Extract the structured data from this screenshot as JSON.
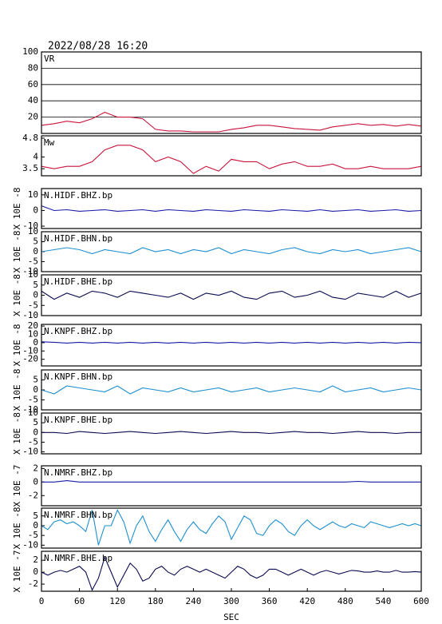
{
  "title": "2022/08/28 16:20",
  "chart_data": [
    {
      "type": "line",
      "label": "VR",
      "x": [
        0,
        20,
        40,
        60,
        80,
        100,
        120,
        140,
        160,
        180,
        200,
        220,
        240,
        260,
        280,
        300,
        320,
        340,
        360,
        380,
        400,
        420,
        440,
        460,
        480,
        500,
        520,
        540,
        560,
        580,
        600
      ],
      "values": [
        10,
        12,
        15,
        13,
        18,
        26,
        20,
        20,
        18,
        5,
        3,
        3,
        2,
        2,
        2,
        5,
        7,
        10,
        10,
        8,
        6,
        5,
        4,
        8,
        10,
        12,
        10,
        11,
        9,
        11,
        9
      ],
      "color": "#c8143c",
      "xlim": [
        0,
        600
      ],
      "ylim": [
        0,
        100
      ],
      "yticks": [
        20,
        40,
        60,
        80,
        100
      ],
      "grid": true
    },
    {
      "type": "line",
      "label": "Mw",
      "x": [
        0,
        20,
        40,
        60,
        80,
        100,
        120,
        140,
        160,
        180,
        200,
        220,
        240,
        260,
        280,
        300,
        320,
        340,
        360,
        380,
        400,
        420,
        440,
        460,
        480,
        500,
        520,
        540,
        560,
        580,
        600
      ],
      "values": [
        3.6,
        3.5,
        3.6,
        3.6,
        3.8,
        4.3,
        4.5,
        4.5,
        4.3,
        3.8,
        4.0,
        3.8,
        3.3,
        3.6,
        3.4,
        3.9,
        3.8,
        3.8,
        3.5,
        3.7,
        3.8,
        3.6,
        3.6,
        3.7,
        3.5,
        3.5,
        3.6,
        3.5,
        3.5,
        3.5,
        3.6
      ],
      "color": "#c8143c",
      "xlim": [
        0,
        600
      ],
      "ylim": [
        3.2,
        4.9
      ],
      "yticks": [
        3.5,
        4.0,
        4.8
      ],
      "grid": false
    },
    {
      "type": "line",
      "label": "N.HIDF.BHZ.bp",
      "ylabel": "X 10E -8",
      "x": [
        0,
        20,
        40,
        60,
        80,
        100,
        120,
        140,
        160,
        180,
        200,
        220,
        240,
        260,
        280,
        300,
        320,
        340,
        360,
        380,
        400,
        420,
        440,
        460,
        480,
        500,
        520,
        540,
        560,
        580,
        600
      ],
      "values": [
        3,
        0,
        0.5,
        -0.5,
        0,
        0.5,
        -0.5,
        0,
        0.5,
        -0.5,
        0.5,
        0,
        -0.5,
        0.5,
        0,
        -0.5,
        0.5,
        0,
        -0.5,
        0.5,
        0,
        -0.5,
        0.5,
        -0.5,
        0,
        0.5,
        -0.5,
        0,
        0.5,
        -0.5,
        0
      ],
      "color": "#1a1aa8",
      "xlim": [
        0,
        600
      ],
      "ylim": [
        -11.5,
        14
      ],
      "yticks": [
        -10,
        0,
        10
      ],
      "grid": false
    },
    {
      "type": "line",
      "label": "N.HIDF.BHN.bp",
      "ylabel": "X 10E -8",
      "x": [
        0,
        20,
        40,
        60,
        80,
        100,
        120,
        140,
        160,
        180,
        200,
        220,
        240,
        260,
        280,
        300,
        320,
        340,
        360,
        380,
        400,
        420,
        440,
        460,
        480,
        500,
        520,
        540,
        560,
        580,
        600
      ],
      "values": [
        0,
        1,
        2,
        1,
        -1,
        1,
        0,
        -1,
        2,
        0,
        1,
        -1,
        1,
        0,
        2,
        -1,
        1,
        0,
        -1,
        1,
        2,
        0,
        -1,
        1,
        0,
        1,
        -1,
        0,
        1,
        2,
        0
      ],
      "color": "#1f8fd0",
      "xlim": [
        0,
        600
      ],
      "ylim": [
        -10,
        10
      ],
      "yticks": [
        -10,
        -5,
        0,
        5,
        10
      ],
      "grid": false
    },
    {
      "type": "line",
      "label": "N.HIDF.BHE.bp",
      "ylabel": "X 10E -8",
      "x": [
        0,
        20,
        40,
        60,
        80,
        100,
        120,
        140,
        160,
        180,
        200,
        220,
        240,
        260,
        280,
        300,
        320,
        340,
        360,
        380,
        400,
        420,
        440,
        460,
        480,
        500,
        520,
        540,
        560,
        580,
        600
      ],
      "values": [
        2,
        -2,
        1,
        -1,
        2,
        1,
        -1,
        2,
        1,
        0,
        -1,
        1,
        -2,
        1,
        0,
        2,
        -1,
        -2,
        1,
        2,
        -1,
        0,
        2,
        -1,
        -2,
        1,
        0,
        -1,
        2,
        -1,
        1
      ],
      "color": "#0a0a50",
      "xlim": [
        0,
        600
      ],
      "ylim": [
        -10,
        10
      ],
      "yticks": [
        -10,
        -5,
        0,
        5,
        10
      ],
      "grid": false
    },
    {
      "type": "line",
      "label": "N.KNPF.BHZ.bp",
      "ylabel": "X 10E -8",
      "x": [
        0,
        20,
        40,
        60,
        80,
        100,
        120,
        140,
        160,
        180,
        200,
        220,
        240,
        260,
        280,
        300,
        320,
        340,
        360,
        380,
        400,
        420,
        440,
        460,
        480,
        500,
        520,
        540,
        560,
        580,
        600
      ],
      "values": [
        1,
        0.5,
        -0.5,
        0.5,
        -0.5,
        0.5,
        -0.5,
        0.5,
        -0.5,
        0.5,
        -0.5,
        0.5,
        -0.5,
        0.5,
        -0.5,
        0.5,
        -0.5,
        0.5,
        -0.5,
        0.5,
        -0.5,
        0.5,
        -0.5,
        0.5,
        -0.5,
        0.5,
        -0.5,
        0.5,
        -0.5,
        0.5,
        0
      ],
      "color": "#1a1aa8",
      "xlim": [
        0,
        600
      ],
      "ylim": [
        -28,
        22
      ],
      "yticks": [
        -20,
        -10,
        0,
        10,
        20
      ],
      "grid": false
    },
    {
      "type": "line",
      "label": "N.KNPF.BHN.bp",
      "ylabel": "X 10E -8",
      "x": [
        0,
        20,
        40,
        60,
        80,
        100,
        120,
        140,
        160,
        180,
        200,
        220,
        240,
        260,
        280,
        300,
        320,
        340,
        360,
        380,
        400,
        420,
        440,
        460,
        480,
        500,
        520,
        540,
        560,
        580,
        600
      ],
      "values": [
        0,
        -2,
        2,
        1,
        0,
        -1,
        2,
        -2,
        1,
        0,
        -1,
        1,
        -1,
        0,
        1,
        -1,
        0,
        1,
        -1,
        0,
        1,
        0,
        -1,
        2,
        -1,
        0,
        1,
        -1,
        0,
        1,
        0
      ],
      "color": "#1f8fd0",
      "xlim": [
        0,
        600
      ],
      "ylim": [
        -10,
        10
      ],
      "yticks": [
        -10,
        -5,
        0,
        5
      ],
      "grid": false
    },
    {
      "type": "line",
      "label": "N.KNPF.BHE.bp",
      "ylabel": "X 10E -8",
      "x": [
        0,
        20,
        40,
        60,
        80,
        100,
        120,
        140,
        160,
        180,
        200,
        220,
        240,
        260,
        280,
        300,
        320,
        340,
        360,
        380,
        400,
        420,
        440,
        460,
        480,
        500,
        520,
        540,
        560,
        580,
        600
      ],
      "values": [
        0,
        0,
        -0.5,
        0.5,
        0,
        -0.5,
        0,
        0.5,
        0,
        -0.5,
        0,
        0.5,
        0,
        -0.5,
        0,
        0.5,
        0,
        0,
        -0.5,
        0,
        0.5,
        0,
        0,
        -0.5,
        0,
        0.5,
        0,
        0,
        -0.5,
        0,
        0
      ],
      "color": "#0a0a50",
      "xlim": [
        0,
        600
      ],
      "ylim": [
        -11,
        10
      ],
      "yticks": [
        -10,
        -5,
        0,
        5,
        10
      ],
      "grid": false
    },
    {
      "type": "line",
      "label": "N.NMRF.BHZ.bp",
      "ylabel": "X 10E -7",
      "x": [
        0,
        20,
        40,
        60,
        80,
        100,
        120,
        140,
        160,
        180,
        200,
        220,
        240,
        260,
        280,
        300,
        320,
        340,
        360,
        380,
        400,
        420,
        440,
        460,
        480,
        500,
        520,
        540,
        560,
        580,
        600
      ],
      "values": [
        0,
        0,
        0.2,
        0,
        0,
        0,
        0,
        0,
        0,
        0,
        0,
        0,
        0,
        0,
        0,
        0,
        0,
        0,
        0,
        0,
        0,
        0,
        0,
        0,
        0,
        0.1,
        0,
        0,
        0,
        0,
        0
      ],
      "color": "#1a1aa8",
      "xlim": [
        0,
        600
      ],
      "ylim": [
        -3.5,
        2.4
      ],
      "yticks": [
        -2,
        0,
        2
      ],
      "grid": false
    },
    {
      "type": "line",
      "label": "N.NMRF.BHN.bp",
      "ylabel": "X 10E -8",
      "x": [
        0,
        10,
        20,
        30,
        40,
        50,
        60,
        70,
        80,
        90,
        100,
        110,
        120,
        130,
        140,
        150,
        160,
        170,
        180,
        190,
        200,
        210,
        220,
        230,
        240,
        250,
        260,
        270,
        280,
        290,
        300,
        310,
        320,
        330,
        340,
        350,
        360,
        370,
        380,
        390,
        400,
        410,
        420,
        430,
        440,
        450,
        460,
        470,
        480,
        490,
        500,
        510,
        520,
        530,
        540,
        550,
        560,
        570,
        580,
        590,
        600
      ],
      "values": [
        0,
        -2,
        2,
        3,
        1,
        2,
        0,
        -3,
        8,
        -10,
        0,
        0,
        8,
        2,
        -9,
        0,
        5,
        -3,
        -8,
        -2,
        3,
        -3,
        -8,
        -2,
        2,
        -2,
        -4,
        1,
        5,
        2,
        -7,
        -1,
        5,
        3,
        -4,
        -5,
        0,
        3,
        1,
        -3,
        -5,
        0,
        3,
        0,
        -2,
        0,
        2,
        0,
        -1,
        1,
        0,
        -1,
        2,
        1,
        0,
        -1,
        0,
        1,
        0,
        1,
        0
      ],
      "color": "#1f8fd0",
      "xlim": [
        0,
        600
      ],
      "ylim": [
        -11.5,
        9
      ],
      "yticks": [
        -10,
        -5,
        0,
        5
      ],
      "grid": false
    },
    {
      "type": "line",
      "label": "N.NMRF.BHE.bp",
      "ylabel": "X 10E -7",
      "x": [
        0,
        10,
        20,
        30,
        40,
        50,
        60,
        70,
        80,
        90,
        100,
        110,
        120,
        130,
        140,
        150,
        160,
        170,
        180,
        190,
        200,
        210,
        220,
        230,
        240,
        250,
        260,
        270,
        280,
        290,
        300,
        310,
        320,
        330,
        340,
        350,
        360,
        370,
        380,
        390,
        400,
        410,
        420,
        430,
        440,
        450,
        460,
        470,
        480,
        490,
        500,
        510,
        520,
        530,
        540,
        550,
        560,
        570,
        580,
        590,
        600
      ],
      "values": [
        0,
        -0.5,
        0,
        0.3,
        0,
        0.5,
        1,
        0,
        -3,
        -1,
        2.5,
        0,
        -2.5,
        -0.5,
        1.5,
        0.5,
        -1.5,
        -1,
        0.5,
        1,
        0,
        -0.5,
        0.5,
        1,
        0.5,
        0,
        0.5,
        0,
        -0.5,
        -1,
        0,
        1,
        0.5,
        -0.5,
        -1,
        -0.5,
        0.5,
        0.5,
        0,
        -0.5,
        0,
        0.5,
        0,
        -0.5,
        0,
        0.3,
        0,
        -0.3,
        0,
        0.3,
        0.2,
        0,
        0,
        0.2,
        0,
        0,
        0.3,
        0,
        0,
        0.1,
        0
      ],
      "color": "#0a0a50",
      "xlim": [
        0,
        600
      ],
      "ylim": [
        -3.2,
        3.5
      ],
      "yticks": [
        -2,
        0,
        2
      ],
      "grid": false,
      "xticks": [
        0,
        60,
        120,
        180,
        240,
        300,
        360,
        420,
        480,
        540,
        600
      ],
      "xlabel": "SEC"
    }
  ]
}
